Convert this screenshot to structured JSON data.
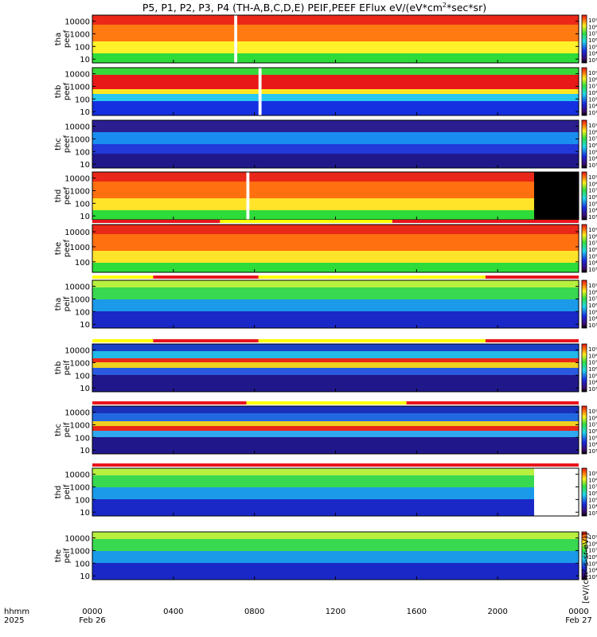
{
  "title": "P5, P1, P2, P3, P4 (TH-A,B,C,D,E) PEIF,PEEF EFlux eV/(eV*cm",
  "title_sup": "2",
  "title_tail": "*sec*sr)",
  "colors": {
    "bar_red": "#e8141c",
    "bar_yellow": "#ffff00",
    "fill_black": "#000000"
  },
  "chart_data": {
    "type": "heatmap",
    "x_axis": {
      "label_top": "hhmm",
      "label_bottom": "2025",
      "ticks": [
        "0000",
        "0400",
        "0800",
        "1200",
        "1600",
        "2000",
        "0000"
      ],
      "tick_hours": [
        0,
        4,
        8,
        12,
        16,
        20,
        24
      ],
      "date_left": "Feb 26",
      "date_right": "Feb 27",
      "range_hours": [
        0,
        24
      ]
    },
    "colorbar_labels": [
      "10⁹",
      "10⁸",
      "10⁷",
      "10⁶",
      "10⁵",
      "10⁴",
      "10³"
    ],
    "colorbar_unit": "[eV/(cm²-s-sr-eV)]",
    "panels": [
      {
        "probe": "tha",
        "kind": "peef",
        "y_ticks": [
          "10000",
          "1000",
          "100",
          "10"
        ],
        "ylim": [
          5,
          30000
        ],
        "yscale": "log",
        "bands": [
          {
            "from": 0,
            "to": 0.2,
            "color": "#2ddc3a"
          },
          {
            "from": 0.2,
            "to": 0.45,
            "color": "#fff22a"
          },
          {
            "from": 0.45,
            "to": 0.8,
            "color": "#ff7a10"
          },
          {
            "from": 0.8,
            "to": 1,
            "color": "#ec2818"
          }
        ],
        "gaps_hours": [
          [
            7.0,
            7.15
          ]
        ],
        "boundary": true
      },
      {
        "probe": "thb",
        "kind": "peef",
        "y_ticks": [
          "10000",
          "1000",
          "100",
          "10"
        ],
        "ylim": [
          5,
          30000
        ],
        "yscale": "log",
        "bands": [
          {
            "from": 0,
            "to": 0.3,
            "color": "#1530e0"
          },
          {
            "from": 0.3,
            "to": 0.45,
            "color": "#28c8f0"
          },
          {
            "from": 0.45,
            "to": 0.55,
            "color": "#ffe820"
          },
          {
            "from": 0.55,
            "to": 0.85,
            "color": "#e81818"
          },
          {
            "from": 0.85,
            "to": 1,
            "color": "#38d838"
          }
        ],
        "gaps_hours": [
          [
            8.2,
            8.35
          ]
        ],
        "boundary": false
      },
      {
        "probe": "thc",
        "kind": "peef",
        "y_ticks": [
          "10000",
          "1000",
          "100",
          "10"
        ],
        "ylim": [
          5,
          30000
        ],
        "yscale": "log",
        "bands": [
          {
            "from": 0,
            "to": 0.3,
            "color": "#20188a"
          },
          {
            "from": 0.3,
            "to": 0.5,
            "color": "#2238d8"
          },
          {
            "from": 0.5,
            "to": 0.75,
            "color": "#1a8ef0"
          },
          {
            "from": 0.75,
            "to": 1,
            "color": "#2a1e90"
          }
        ],
        "gaps_hours": [],
        "boundary": false
      },
      {
        "probe": "thd",
        "kind": "peef",
        "y_ticks": [
          "10000",
          "1000",
          "100",
          "10"
        ],
        "ylim": [
          5,
          30000
        ],
        "yscale": "log",
        "bands": [
          {
            "from": 0,
            "to": 0.2,
            "color": "#2ddc3a"
          },
          {
            "from": 0.2,
            "to": 0.45,
            "color": "#ffe42a"
          },
          {
            "from": 0.45,
            "to": 0.8,
            "color": "#ff7010"
          },
          {
            "from": 0.8,
            "to": 1,
            "color": "#e82818"
          }
        ],
        "gaps_hours": [
          [
            7.6,
            7.75
          ]
        ],
        "no_data_from_hours": 21.8,
        "boundary": true
      },
      {
        "probe": "the",
        "kind": "peef",
        "y_ticks": [
          "10000",
          "1000",
          "100"
        ],
        "ylim": [
          20,
          30000
        ],
        "yscale": "log",
        "bands": [
          {
            "from": 0,
            "to": 0.2,
            "color": "#2ddc3a"
          },
          {
            "from": 0.2,
            "to": 0.45,
            "color": "#ffe42a"
          },
          {
            "from": 0.45,
            "to": 0.8,
            "color": "#ff7010"
          },
          {
            "from": 0.8,
            "to": 1,
            "color": "#e82818"
          }
        ],
        "gaps_hours": [],
        "boundary": true
      },
      {
        "probe": "tha",
        "kind": "peif",
        "y_ticks": [
          "10000",
          "1000",
          "100",
          "10"
        ],
        "ylim": [
          5,
          30000
        ],
        "yscale": "log",
        "bands": [
          {
            "from": 0,
            "to": 0.35,
            "color": "#1a28c8"
          },
          {
            "from": 0.35,
            "to": 0.6,
            "color": "#1a9ae8"
          },
          {
            "from": 0.6,
            "to": 0.85,
            "color": "#38d850"
          },
          {
            "from": 0.85,
            "to": 1,
            "color": "#b8f040"
          }
        ],
        "gaps_hours": [],
        "boundary": false
      },
      {
        "probe": "thb",
        "kind": "peif",
        "y_ticks": [
          "10000",
          "1000",
          "100",
          "10"
        ],
        "ylim": [
          5,
          30000
        ],
        "yscale": "log",
        "bands": [
          {
            "from": 0,
            "to": 0.35,
            "color": "#20188a"
          },
          {
            "from": 0.35,
            "to": 0.5,
            "color": "#2a5ae0"
          },
          {
            "from": 0.5,
            "to": 0.62,
            "color": "#f0d020"
          },
          {
            "from": 0.62,
            "to": 0.7,
            "color": "#e82818"
          },
          {
            "from": 0.7,
            "to": 0.85,
            "color": "#22b8e8"
          },
          {
            "from": 0.85,
            "to": 1,
            "color": "#1a40c8"
          }
        ],
        "gaps_hours": [],
        "boundary": false
      },
      {
        "probe": "thc",
        "kind": "peif",
        "y_ticks": [
          "10000",
          "1000",
          "100",
          "10"
        ],
        "ylim": [
          5,
          30000
        ],
        "yscale": "log",
        "bands": [
          {
            "from": 0,
            "to": 0.35,
            "color": "#20188a"
          },
          {
            "from": 0.35,
            "to": 0.48,
            "color": "#30a8f0"
          },
          {
            "from": 0.48,
            "to": 0.58,
            "color": "#e82818"
          },
          {
            "from": 0.58,
            "to": 0.68,
            "color": "#f0d020"
          },
          {
            "from": 0.68,
            "to": 0.85,
            "color": "#2268e0"
          },
          {
            "from": 0.85,
            "to": 1,
            "color": "#1a30b8"
          }
        ],
        "gaps_hours": [],
        "boundary": false
      },
      {
        "probe": "thd",
        "kind": "peif",
        "y_ticks": [
          "10000",
          "1000",
          "100",
          "10"
        ],
        "ylim": [
          5,
          30000
        ],
        "yscale": "log",
        "bands": [
          {
            "from": 0,
            "to": 0.35,
            "color": "#1a28c8"
          },
          {
            "from": 0.35,
            "to": 0.6,
            "color": "#1a9ae8"
          },
          {
            "from": 0.6,
            "to": 0.85,
            "color": "#38d850"
          },
          {
            "from": 0.85,
            "to": 1,
            "color": "#b8f040"
          }
        ],
        "gaps_hours": [],
        "no_data_white_from_hours": 21.8,
        "boundary": false
      },
      {
        "probe": "the",
        "kind": "peif",
        "y_ticks": [
          "10000",
          "1000",
          "100",
          "10"
        ],
        "ylim": [
          5,
          30000
        ],
        "yscale": "log",
        "bands": [
          {
            "from": 0,
            "to": 0.35,
            "color": "#1a28c8"
          },
          {
            "from": 0.35,
            "to": 0.6,
            "color": "#1a9ae8"
          },
          {
            "from": 0.6,
            "to": 0.85,
            "color": "#38d850"
          },
          {
            "from": 0.85,
            "to": 1,
            "color": "#b8f040"
          }
        ],
        "gaps_hours": [],
        "boundary": false
      }
    ],
    "mode_bars": [
      {
        "after_panel": 4,
        "segments": [
          {
            "from": 0,
            "to": 6.3,
            "color": "red"
          },
          {
            "from": 6.3,
            "to": 14.8,
            "color": "yellow"
          },
          {
            "from": 14.8,
            "to": 24,
            "color": "red"
          }
        ]
      },
      {
        "after_panel": 5,
        "segments": [
          {
            "from": 0,
            "to": 3.0,
            "color": "yellow"
          },
          {
            "from": 3.0,
            "to": 8.2,
            "color": "red"
          },
          {
            "from": 8.2,
            "to": 19.4,
            "color": "yellow"
          },
          {
            "from": 19.4,
            "to": 24,
            "color": "red"
          }
        ]
      },
      {
        "after_panel": 6,
        "segments": [
          {
            "from": 0,
            "to": 3.0,
            "color": "yellow"
          },
          {
            "from": 3.0,
            "to": 8.2,
            "color": "red"
          },
          {
            "from": 8.2,
            "to": 19.4,
            "color": "yellow"
          },
          {
            "from": 19.4,
            "to": 24,
            "color": "red"
          }
        ]
      },
      {
        "after_panel": 7,
        "segments": [
          {
            "from": 0,
            "to": 7.6,
            "color": "red"
          },
          {
            "from": 7.6,
            "to": 15.5,
            "color": "yellow"
          },
          {
            "from": 15.5,
            "to": 24,
            "color": "red"
          }
        ]
      },
      {
        "after_panel": 8,
        "segments": [
          {
            "from": 0,
            "to": 24,
            "color": "red"
          }
        ]
      }
    ]
  }
}
